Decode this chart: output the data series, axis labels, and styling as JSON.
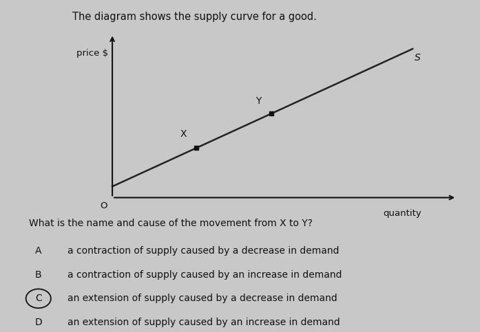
{
  "background_color": "#c8c8c8",
  "title_text": "The diagram shows the supply curve for a good.",
  "title_fontsize": 10.5,
  "title_color": "#111111",
  "supply_line_color": "#222222",
  "supply_linewidth": 1.8,
  "axis_color": "#111111",
  "point_color": "#111111",
  "point_size": 5,
  "font_color": "#111111",
  "font_size_labels": 10,
  "font_size_axis_labels": 9.5,
  "font_size_points": 10,
  "question_text": "What is the name and cause of the movement from X to Y?",
  "question_fontsize": 10,
  "options": [
    {
      "label": "A",
      "text": "a contraction of supply caused by a decrease in demand",
      "circled": false
    },
    {
      "label": "B",
      "text": "a contraction of supply caused by an increase in demand",
      "circled": false
    },
    {
      "label": "C",
      "text": "an extension of supply caused by a decrease in demand",
      "circled": true
    },
    {
      "label": "D",
      "text": "an extension of supply caused by an increase in demand",
      "circled": false
    }
  ],
  "option_fontsize": 10
}
